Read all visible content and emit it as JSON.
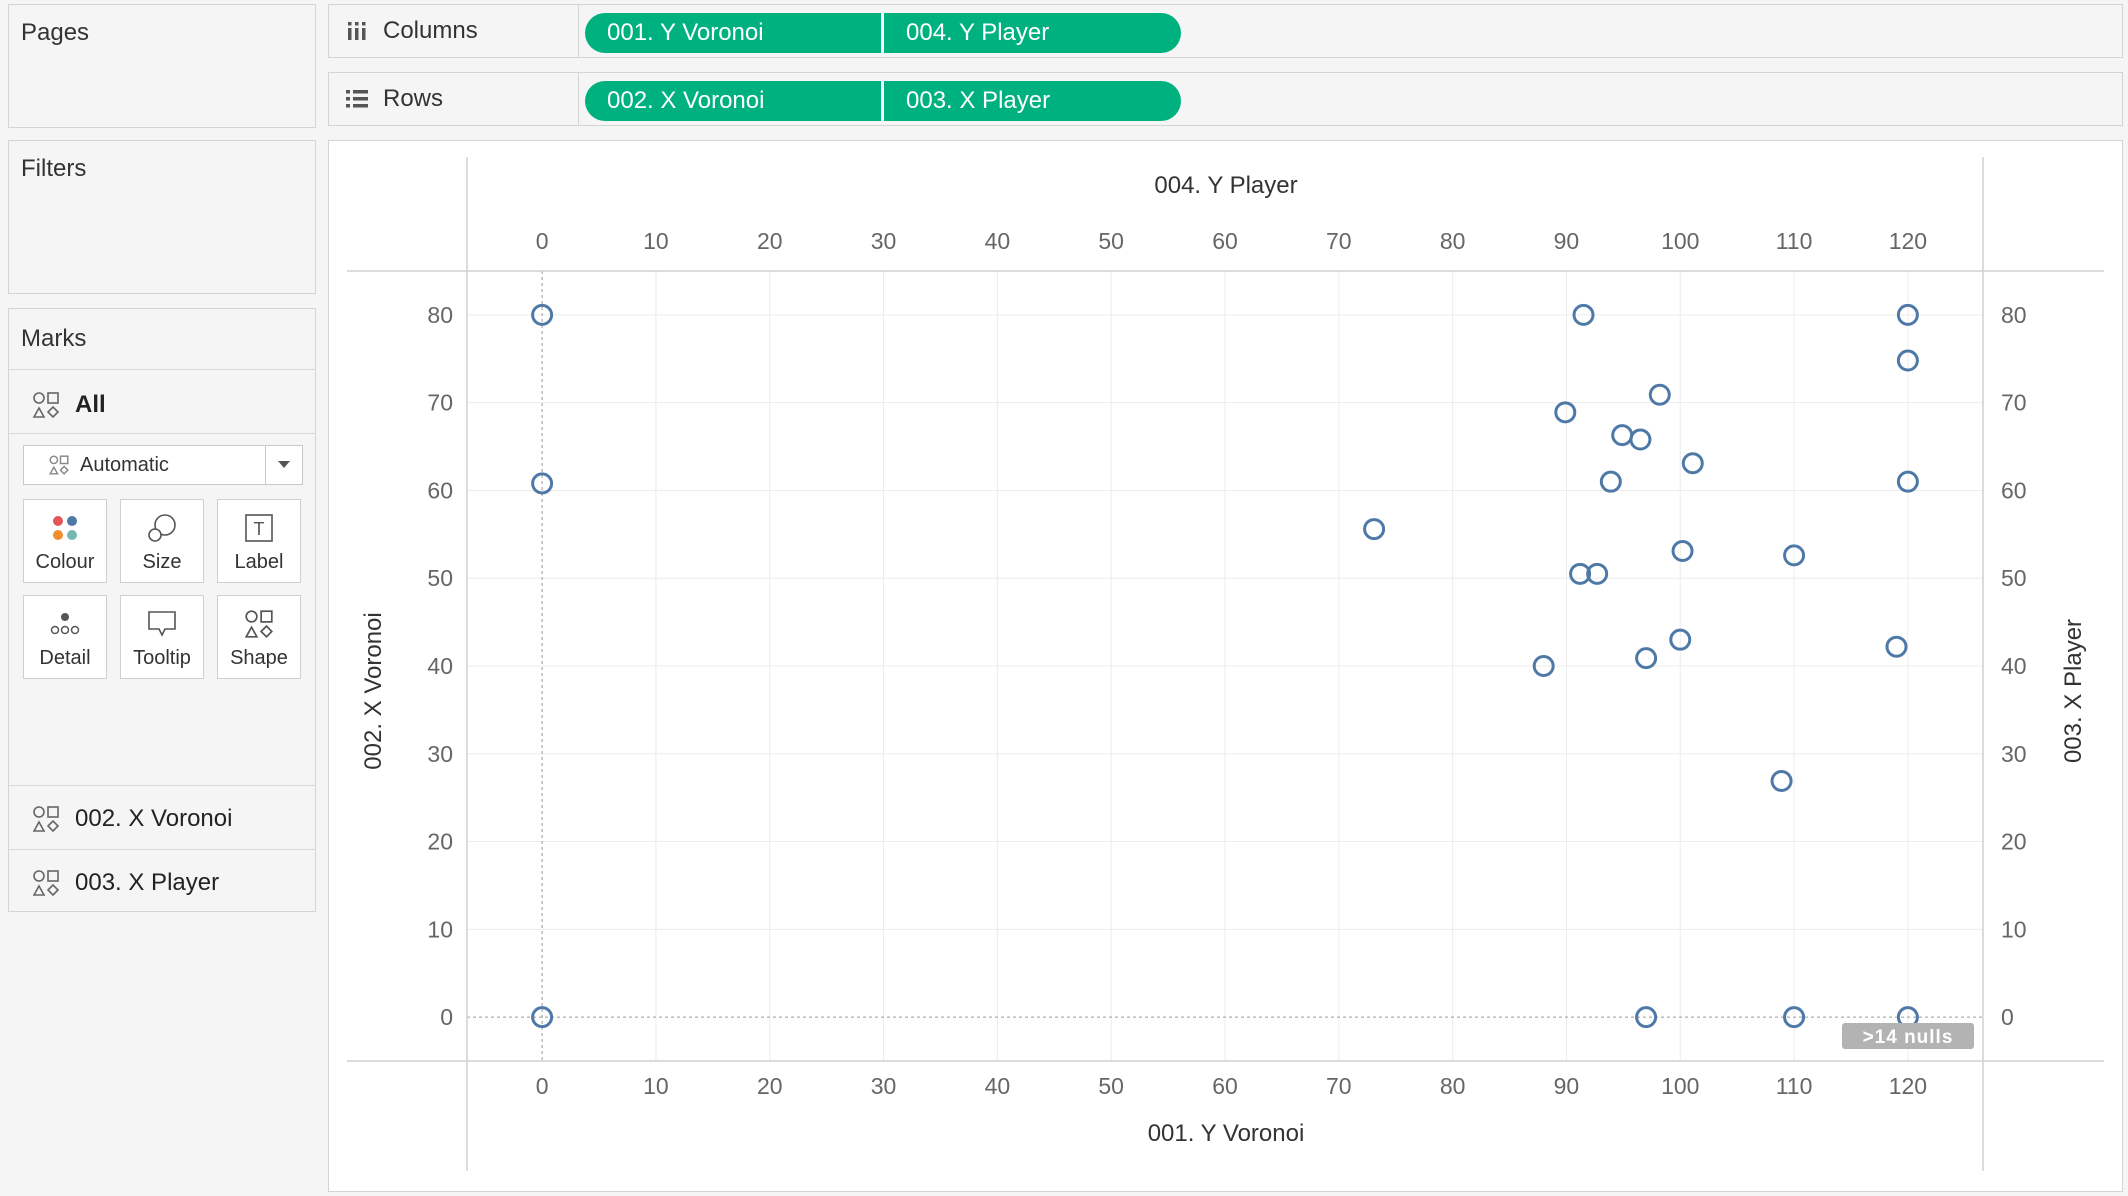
{
  "pages": {
    "title": "Pages"
  },
  "filters": {
    "title": "Filters"
  },
  "shelves": {
    "columns": {
      "label": "Columns",
      "pills": [
        "001. Y Voronoi",
        "004. Y Player"
      ]
    },
    "rows": {
      "label": "Rows",
      "pills": [
        "002. X Voronoi",
        "003. X Player"
      ]
    }
  },
  "marks": {
    "title": "Marks",
    "all_label": "All",
    "mark_type": "Automatic",
    "buttons": [
      "Colour",
      "Size",
      "Label",
      "Detail",
      "Tooltip",
      "Shape"
    ],
    "cards": [
      "002. X Voronoi",
      "003. X Player"
    ]
  },
  "colors": {
    "pill": "#00b180",
    "mark": "#4e79a7"
  },
  "chart_data": {
    "type": "scatter",
    "title": "",
    "x_top_label": "004. Y Player",
    "x_bottom_label": "001. Y Voronoi",
    "y_left_label": "002. X Voronoi",
    "y_right_label": "003. X Player",
    "xlim": [
      -6.6,
      126.6
    ],
    "ylim": [
      -5,
      85
    ],
    "x_ticks": [
      0,
      10,
      20,
      30,
      40,
      50,
      60,
      70,
      80,
      90,
      100,
      110,
      120
    ],
    "y_ticks": [
      0,
      10,
      20,
      30,
      40,
      50,
      60,
      70,
      80
    ],
    "grid": true,
    "marker": "open-circle",
    "null_indicator": ">14 nulls",
    "points": [
      {
        "x": 0,
        "y": 80
      },
      {
        "x": 0,
        "y": 60.8
      },
      {
        "x": 0,
        "y": 0
      },
      {
        "x": 91.5,
        "y": 80
      },
      {
        "x": 120,
        "y": 80
      },
      {
        "x": 120,
        "y": 74.8
      },
      {
        "x": 98.2,
        "y": 70.9
      },
      {
        "x": 89.9,
        "y": 68.9
      },
      {
        "x": 94.9,
        "y": 66.3
      },
      {
        "x": 96.5,
        "y": 65.8
      },
      {
        "x": 101.1,
        "y": 63.1
      },
      {
        "x": 93.9,
        "y": 61
      },
      {
        "x": 120,
        "y": 61
      },
      {
        "x": 73.1,
        "y": 55.6
      },
      {
        "x": 100.2,
        "y": 53.1
      },
      {
        "x": 110,
        "y": 52.6
      },
      {
        "x": 91.2,
        "y": 50.5
      },
      {
        "x": 92.7,
        "y": 50.5
      },
      {
        "x": 100,
        "y": 43
      },
      {
        "x": 97,
        "y": 40.9
      },
      {
        "x": 88,
        "y": 40
      },
      {
        "x": 119,
        "y": 42.2
      },
      {
        "x": 108.9,
        "y": 26.9
      },
      {
        "x": 97,
        "y": 0
      },
      {
        "x": 110,
        "y": 0
      },
      {
        "x": 120,
        "y": 0
      }
    ]
  }
}
